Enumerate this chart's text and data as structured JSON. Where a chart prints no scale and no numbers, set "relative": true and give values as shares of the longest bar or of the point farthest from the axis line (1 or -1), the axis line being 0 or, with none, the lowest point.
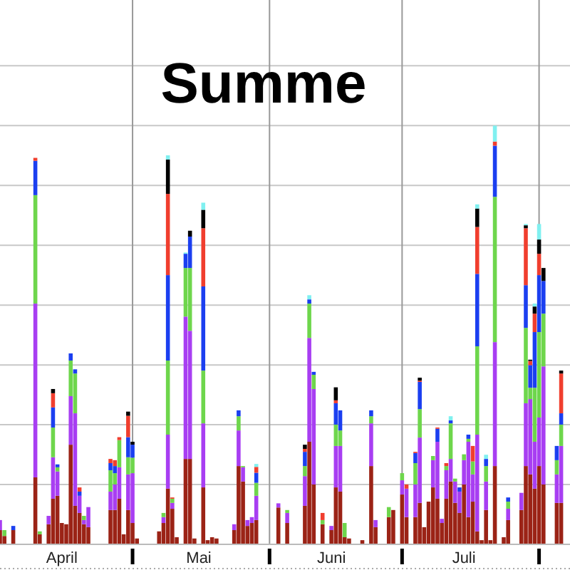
{
  "chart_data": {
    "type": "bar",
    "title": "Summe",
    "relative": true,
    "stacked": true,
    "grid": true,
    "x": [
      "--04-01",
      "--04-02",
      "--04-04",
      "--04-09",
      "--04-10",
      "--04-12",
      "--04-13",
      "--04-14",
      "--04-15",
      "--04-16",
      "--04-17",
      "--04-18",
      "--04-19",
      "--04-20",
      "--04-21",
      "--04-26",
      "--04-27",
      "--04-28",
      "--04-29",
      "--04-30",
      "--05-01",
      "--05-02",
      "--05-07",
      "--05-08",
      "--05-09",
      "--05-10",
      "--05-11",
      "--05-13",
      "--05-14",
      "--05-15",
      "--05-17",
      "--05-18",
      "--05-19",
      "--05-20",
      "--05-24",
      "--05-25",
      "--05-26",
      "--05-27",
      "--05-28",
      "--05-29",
      "--06-03",
      "--06-05",
      "--06-09",
      "--06-10",
      "--06-11",
      "--06-13",
      "--06-15",
      "--06-16",
      "--06-17",
      "--06-18",
      "--06-19",
      "--06-22",
      "--06-24",
      "--06-25",
      "--06-28",
      "--06-29",
      "--07-01",
      "--07-02",
      "--07-04",
      "--07-05",
      "--07-06",
      "--07-07",
      "--07-08",
      "--07-09",
      "--07-10",
      "--07-11",
      "--07-12",
      "--07-13",
      "--07-14",
      "--07-15",
      "--07-16",
      "--07-17",
      "--07-18",
      "--07-19",
      "--07-20",
      "--07-21",
      "--07-22",
      "--07-24",
      "--07-25",
      "--07-28",
      "--07-29",
      "--07-30",
      "--07-31",
      "--08-01",
      "--08-02",
      "--08-05",
      "--08-06"
    ],
    "xlim": [
      "--04-01",
      "--08-08"
    ],
    "xticks": [
      {
        "value": "--04-15",
        "label": "April"
      },
      {
        "value": "--05-01",
        "label": null
      },
      {
        "value": "--05-16",
        "label": "Mai"
      },
      {
        "value": "--06-01",
        "label": null
      },
      {
        "value": "--06-15",
        "label": "Juni"
      },
      {
        "value": "--07-01",
        "label": null
      },
      {
        "value": "--07-15",
        "label": "Juli"
      },
      {
        "value": "--08-01",
        "label": null
      }
    ],
    "series": [
      {
        "color": "#9b2316",
        "values": [
          0.034,
          0.02,
          0.034,
          0.16,
          0.024,
          0.048,
          0.109,
          0.116,
          0.051,
          0.048,
          0.238,
          0.092,
          0.075,
          0.048,
          0.041,
          0.082,
          0.082,
          0.109,
          0.024,
          0.082,
          0.051,
          0.014,
          0.031,
          0.051,
          0.133,
          0.085,
          0.017,
          0.204,
          0.204,
          0.014,
          0.136,
          0.01,
          0.017,
          0.014,
          0.034,
          0.187,
          0.15,
          0.044,
          0.051,
          0.058,
          0.088,
          0.051,
          0.092,
          0.245,
          0.143,
          0.048,
          0.034,
          0.136,
          0.126,
          0.017,
          0.014,
          0.01,
          0.187,
          0.041,
          0.065,
          0.082,
          0.119,
          0.065,
          0.065,
          0.099,
          0.041,
          0.102,
          0.136,
          0.109,
          0.051,
          0.109,
          0.15,
          0.099,
          0.075,
          0.143,
          0.065,
          0.102,
          0.031,
          0.01,
          0.082,
          0.01,
          0.187,
          0.017,
          0.058,
          0.082,
          0.187,
          0.167,
          0.133,
          0.187,
          0.143,
          0.099,
          0.099
        ]
      },
      {
        "color": "#a83ef2",
        "values": [
          0.024,
          0,
          0,
          0.415,
          0,
          0.02,
          0.099,
          0.058,
          0,
          0,
          0.116,
          0.221,
          0.041,
          0.01,
          0.048,
          0.044,
          0.061,
          0.075,
          0,
          0.085,
          0.119,
          0,
          0,
          0.014,
          0.129,
          0.014,
          0,
          0.34,
          0.306,
          0,
          0.153,
          0,
          0,
          0,
          0.014,
          0.085,
          0.034,
          0.014,
          0.014,
          0.058,
          0.01,
          0.024,
          0.071,
          0.248,
          0.228,
          0,
          0.01,
          0.099,
          0.109,
          0,
          0,
          0,
          0.102,
          0.017,
          0,
          0,
          0.034,
          0.068,
          0.078,
          0.156,
          0,
          0,
          0.065,
          0.136,
          0.01,
          0.068,
          0.054,
          0.051,
          0.051,
          0.058,
          0.18,
          0.065,
          0.231,
          0,
          0.068,
          0,
          0.296,
          0,
          0.027,
          0.041,
          0.15,
          0.18,
          0.112,
          0.116,
          0.282,
          0.068,
          0.136
        ]
      },
      {
        "color": "#6ed64c",
        "values": [
          0,
          0.014,
          0,
          0.259,
          0.007,
          0,
          0.071,
          0.01,
          0,
          0,
          0.085,
          0.095,
          0,
          0.01,
          0,
          0.051,
          0.027,
          0.065,
          0,
          0.041,
          0.037,
          0,
          0,
          0.01,
          0.177,
          0.01,
          0,
          0.116,
          0.15,
          0,
          0.126,
          0,
          0,
          0,
          0,
          0.034,
          0.003,
          0,
          0,
          0.031,
          0,
          0.007,
          0.024,
          0.082,
          0.034,
          0.01,
          0,
          0.051,
          0.037,
          0.034,
          0,
          0,
          0.017,
          0,
          0.024,
          0,
          0.017,
          0,
          0.051,
          0.068,
          0,
          0,
          0.01,
          0,
          0,
          0.01,
          0.085,
          0.007,
          0,
          0.014,
          0.007,
          0.031,
          0.211,
          0,
          0.037,
          0,
          0.347,
          0,
          0.017,
          0,
          0.18,
          0.027,
          0.129,
          0.204,
          0.126,
          0.034,
          0.051
        ]
      },
      {
        "color": "#1b3ff0",
        "values": [
          0,
          0,
          0.01,
          0.082,
          0,
          0,
          0.048,
          0.007,
          0,
          0,
          0.017,
          0.01,
          0.01,
          0,
          0,
          0.017,
          0.017,
          0,
          0,
          0.048,
          0.031,
          0,
          0,
          0,
          0.204,
          0,
          0,
          0.034,
          0.075,
          0,
          0.201,
          0,
          0,
          0,
          0,
          0.014,
          0,
          0,
          0,
          0.024,
          0,
          0,
          0.034,
          0.01,
          0.007,
          0,
          0,
          0.051,
          0.048,
          0,
          0,
          0,
          0.014,
          0,
          0,
          0,
          0,
          0,
          0.024,
          0.065,
          0,
          0,
          0,
          0.031,
          0,
          0,
          0.007,
          0,
          0.01,
          0,
          0.01,
          0,
          0.173,
          0,
          0.017,
          0,
          0.122,
          0,
          0.01,
          0,
          0.102,
          0.054,
          0.133,
          0.136,
          0.078,
          0.034,
          0.027
        ]
      },
      {
        "color": "#f03e2e",
        "values": [
          0,
          0,
          0,
          0.007,
          0,
          0,
          0.034,
          0,
          0,
          0,
          0,
          0,
          0.01,
          0,
          0,
          0.01,
          0.014,
          0.007,
          0,
          0.051,
          0,
          0,
          0,
          0,
          0.194,
          0.003,
          0,
          0,
          0,
          0,
          0.139,
          0,
          0,
          0,
          0,
          0,
          0,
          0,
          0,
          0.014,
          0,
          0,
          0.007,
          0,
          0,
          0.017,
          0,
          0.007,
          0,
          0,
          0,
          0,
          0,
          0,
          0,
          0,
          0,
          0.01,
          0.003,
          0.003,
          0,
          0,
          0,
          0.003,
          0,
          0.007,
          0,
          0,
          0,
          0,
          0,
          0.037,
          0.112,
          0,
          0,
          0,
          0.01,
          0,
          0,
          0,
          0.136,
          0.01,
          0.044,
          0.051,
          0,
          0,
          0.095
        ]
      },
      {
        "color": "#000000",
        "values": [
          0,
          0,
          0,
          0,
          0,
          0,
          0.01,
          0,
          0,
          0,
          0,
          0,
          0,
          0,
          0,
          0,
          0,
          0,
          0,
          0.01,
          0.007,
          0,
          0,
          0,
          0.082,
          0,
          0,
          0,
          0.014,
          0,
          0.044,
          0,
          0,
          0,
          0,
          0,
          0,
          0,
          0,
          0,
          0,
          0,
          0.01,
          0,
          0,
          0,
          0,
          0.031,
          0,
          0,
          0,
          0,
          0,
          0,
          0,
          0,
          0,
          0,
          0,
          0.007,
          0,
          0,
          0,
          0,
          0,
          0,
          0,
          0,
          0,
          0,
          0,
          0,
          0.044,
          0,
          0,
          0,
          0,
          0,
          0,
          0,
          0.007,
          0.003,
          0.017,
          0.034,
          0.031,
          0,
          0.007
        ]
      },
      {
        "color": "#80f0f0",
        "values": [
          0,
          0,
          0,
          0,
          0,
          0,
          0,
          0,
          0,
          0,
          0,
          0,
          0,
          0,
          0,
          0,
          0,
          0,
          0,
          0,
          0,
          0,
          0,
          0,
          0.01,
          0,
          0,
          0.003,
          0,
          0,
          0.017,
          0,
          0,
          0,
          0,
          0,
          0,
          0,
          0,
          0.007,
          0,
          0,
          0,
          0.01,
          0,
          0,
          0,
          0,
          0,
          0,
          0,
          0,
          0,
          0,
          0,
          0,
          0,
          0,
          0,
          0,
          0,
          0,
          0,
          0,
          0,
          0,
          0.01,
          0,
          0,
          0,
          0,
          0,
          0.01,
          0,
          0.01,
          0,
          0.038,
          0,
          0,
          0,
          0.003,
          0,
          0.007,
          0.037,
          0,
          0,
          0
        ]
      }
    ]
  }
}
